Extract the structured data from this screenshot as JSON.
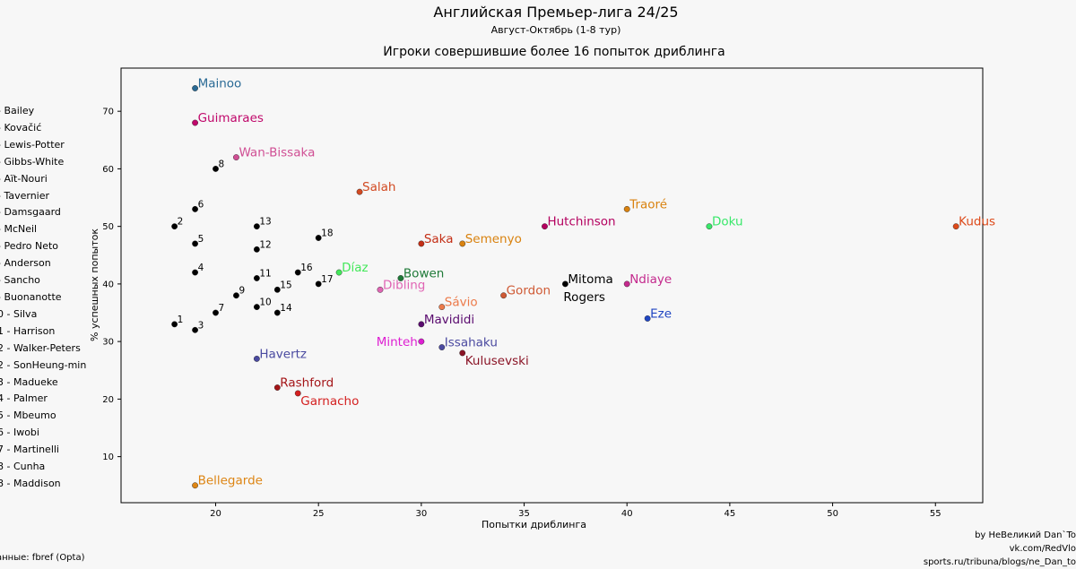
{
  "header": {
    "title": "Английская Премьер-лига 24/25",
    "subtitle": "Август-Октябрь (1-8 тур)",
    "plot_title": "Игроки совершившие более 16 попыток дриблинга"
  },
  "footer": {
    "source": "анные: fbref (Opta)",
    "credits": [
      "by НеВеликий Dan`To",
      "vk.com/RedVlo",
      "sports.ru/tribuna/blogs/ne_Dan_to"
    ]
  },
  "legend": [
    {
      "num": "",
      "text": "- Bailey"
    },
    {
      "num": "",
      "text": "- Kovačić"
    },
    {
      "num": "",
      "text": "- Lewis-Potter"
    },
    {
      "num": "",
      "text": "- Gibbs-White"
    },
    {
      "num": "",
      "text": "- Aït-Nouri"
    },
    {
      "num": "",
      "text": "- Tavernier"
    },
    {
      "num": "",
      "text": "- Damsgaard"
    },
    {
      "num": "",
      "text": "- McNeil"
    },
    {
      "num": "",
      "text": "- Pedro Neto"
    },
    {
      "num": "",
      "text": "- Anderson"
    },
    {
      "num": "",
      "text": "- Sancho"
    },
    {
      "num": "",
      "text": "- Buonanotte"
    },
    {
      "num": "0",
      "text": "- Silva"
    },
    {
      "num": "1",
      "text": "- Harrison"
    },
    {
      "num": "2",
      "text": "- Walker-Peters"
    },
    {
      "num": "2",
      "text": "- SonHeung-min"
    },
    {
      "num": "3",
      "text": "- Madueke"
    },
    {
      "num": "4",
      "text": "- Palmer"
    },
    {
      "num": "5",
      "text": "- Mbeumo"
    },
    {
      "num": "6",
      "text": "- Iwobi"
    },
    {
      "num": "7",
      "text": "- Martinelli"
    },
    {
      "num": "8",
      "text": "- Cunha"
    },
    {
      "num": "8",
      "text": "- Maddison"
    }
  ],
  "chart_data": {
    "type": "scatter",
    "xlabel": "Попытки дриблинга",
    "ylabel": "% успешных попыток",
    "xlim": [
      15.4,
      57.3
    ],
    "ylim": [
      2,
      77.5
    ],
    "xticks": [
      20,
      25,
      30,
      35,
      40,
      45,
      50,
      55
    ],
    "yticks": [
      10,
      20,
      30,
      40,
      50,
      60,
      70
    ],
    "grid": false,
    "points": [
      {
        "label": "Mainoo",
        "x": 19,
        "y": 74,
        "color": "#2a6a95",
        "anchor": "right"
      },
      {
        "label": "Guimaraes",
        "x": 19,
        "y": 68,
        "color": "#c0086b",
        "anchor": "right"
      },
      {
        "label": "Wan-Bissaka",
        "x": 21,
        "y": 62,
        "color": "#d04f94",
        "anchor": "right"
      },
      {
        "label": "Salah",
        "x": 27,
        "y": 56,
        "color": "#d24a22",
        "anchor": "right"
      },
      {
        "label": "Traoré",
        "x": 40,
        "y": 53,
        "color": "#d9820f",
        "anchor": "right"
      },
      {
        "label": "Hutchinson",
        "x": 36,
        "y": 50,
        "color": "#b4005f",
        "anchor": "right"
      },
      {
        "label": "Doku",
        "x": 44,
        "y": 50,
        "color": "#39e86a",
        "anchor": "right"
      },
      {
        "label": "Kudus",
        "x": 56,
        "y": 50,
        "color": "#dd4a1a",
        "anchor": "right"
      },
      {
        "label": "Saka",
        "x": 30,
        "y": 47,
        "color": "#c42f16",
        "anchor": "right"
      },
      {
        "label": "Semenyo",
        "x": 32,
        "y": 47,
        "color": "#d9820f",
        "anchor": "right"
      },
      {
        "label": "Díaz",
        "x": 26,
        "y": 42,
        "color": "#43e85a",
        "anchor": "right"
      },
      {
        "label": "Bowen",
        "x": 29,
        "y": 41,
        "color": "#1f7a38",
        "anchor": "right"
      },
      {
        "label": "Dibling",
        "x": 28,
        "y": 39,
        "color": "#e065b4",
        "anchor": "right"
      },
      {
        "label": "Gordon",
        "x": 34,
        "y": 38,
        "color": "#cf5a35",
        "anchor": "right"
      },
      {
        "label": "Mitoma",
        "x": 37,
        "y": 40,
        "color": "#000000",
        "anchor": "right"
      },
      {
        "label": "Rogers",
        "x": 37,
        "y": 40,
        "color": "#000000",
        "anchor": "below",
        "hideDot": true
      },
      {
        "label": "Ndiaye",
        "x": 40,
        "y": 40,
        "color": "#c42a8d",
        "anchor": "right"
      },
      {
        "label": "Sávio",
        "x": 31,
        "y": 36,
        "color": "#ec7a4a",
        "anchor": "right"
      },
      {
        "label": "Eze",
        "x": 41,
        "y": 34,
        "color": "#2046c2",
        "anchor": "right"
      },
      {
        "label": "Mavididi",
        "x": 30,
        "y": 33,
        "color": "#5a0b6f",
        "anchor": "right"
      },
      {
        "label": "Minteh",
        "x": 30,
        "y": 30,
        "color": "#de1fd2",
        "anchor": "left"
      },
      {
        "label": "Issahaku",
        "x": 31,
        "y": 29,
        "color": "#4b4aa0",
        "anchor": "right"
      },
      {
        "label": "Kulusevski",
        "x": 32,
        "y": 28,
        "color": "#8a1426",
        "anchor": "belowright"
      },
      {
        "label": "Havertz",
        "x": 22,
        "y": 27,
        "color": "#4a4aa0",
        "anchor": "right"
      },
      {
        "label": "Rashford",
        "x": 23,
        "y": 22,
        "color": "#a41518",
        "anchor": "right"
      },
      {
        "label": "Garnacho",
        "x": 24,
        "y": 21,
        "color": "#d42020",
        "anchor": "belowright"
      },
      {
        "label": "Bellegarde",
        "x": 19,
        "y": 5,
        "color": "#dd8514",
        "anchor": "right"
      },
      {
        "label": "1",
        "x": 18,
        "y": 33,
        "color": "#000000",
        "anchor": "num"
      },
      {
        "label": "2",
        "x": 18,
        "y": 50,
        "color": "#000000",
        "anchor": "num"
      },
      {
        "label": "3",
        "x": 19,
        "y": 32,
        "color": "#000000",
        "anchor": "num"
      },
      {
        "label": "4",
        "x": 19,
        "y": 42,
        "color": "#000000",
        "anchor": "num"
      },
      {
        "label": "5",
        "x": 19,
        "y": 47,
        "color": "#000000",
        "anchor": "num"
      },
      {
        "label": "6",
        "x": 19,
        "y": 53,
        "color": "#000000",
        "anchor": "num"
      },
      {
        "label": "7",
        "x": 20,
        "y": 35,
        "color": "#000000",
        "anchor": "num"
      },
      {
        "label": "8",
        "x": 20,
        "y": 60,
        "color": "#000000",
        "anchor": "num"
      },
      {
        "label": "9",
        "x": 21,
        "y": 38,
        "color": "#000000",
        "anchor": "num"
      },
      {
        "label": "10",
        "x": 22,
        "y": 36,
        "color": "#000000",
        "anchor": "num"
      },
      {
        "label": "11",
        "x": 22,
        "y": 41,
        "color": "#000000",
        "anchor": "num"
      },
      {
        "label": "12",
        "x": 22,
        "y": 46,
        "color": "#000000",
        "anchor": "num"
      },
      {
        "label": "13",
        "x": 22,
        "y": 50,
        "color": "#000000",
        "anchor": "num"
      },
      {
        "label": "14",
        "x": 23,
        "y": 35,
        "color": "#000000",
        "anchor": "num"
      },
      {
        "label": "15",
        "x": 23,
        "y": 39,
        "color": "#000000",
        "anchor": "num"
      },
      {
        "label": "16",
        "x": 24,
        "y": 42,
        "color": "#000000",
        "anchor": "num"
      },
      {
        "label": "17",
        "x": 25,
        "y": 40,
        "color": "#000000",
        "anchor": "num"
      },
      {
        "label": "18",
        "x": 25,
        "y": 48,
        "color": "#000000",
        "anchor": "num"
      }
    ]
  }
}
